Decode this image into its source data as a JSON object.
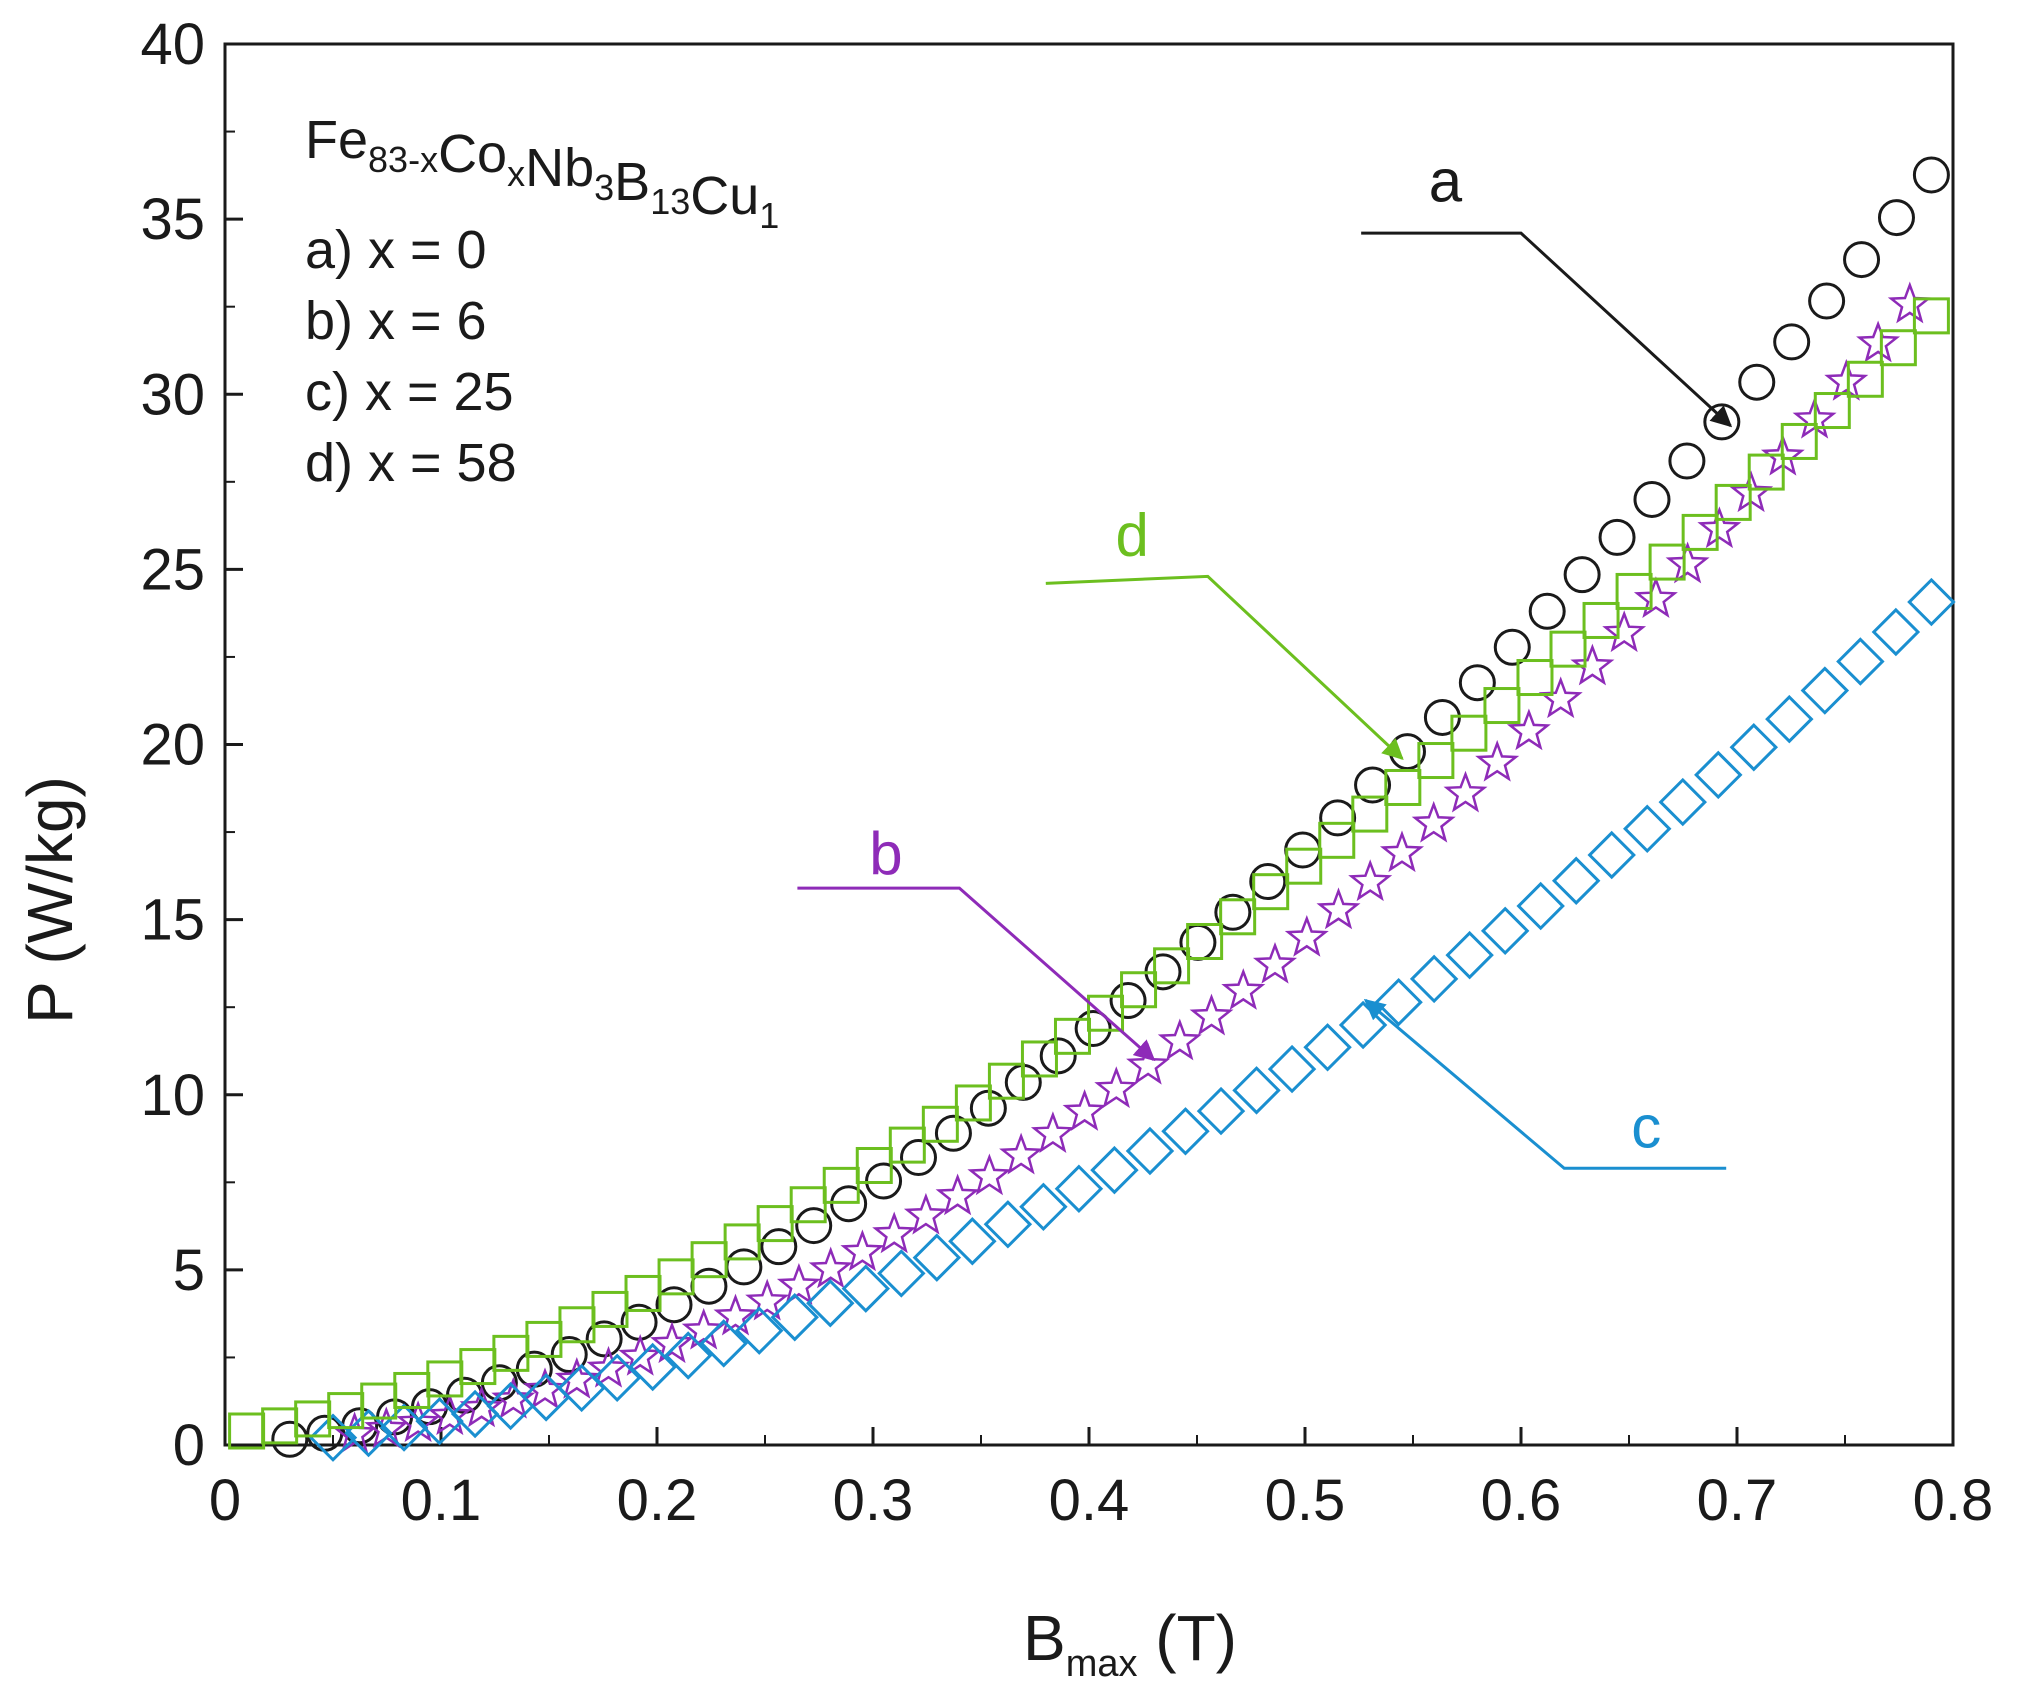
{
  "chart_data": {
    "type": "scatter",
    "title": "",
    "xlabel": {
      "main": "B",
      "sub": "max",
      "unit": "(T)"
    },
    "ylabel": "P (W/kg)",
    "xlim": [
      0,
      0.8
    ],
    "ylim": [
      0,
      40
    ],
    "xticks": [
      0,
      0.1,
      0.2,
      0.3,
      0.4,
      0.5,
      0.6,
      0.7,
      0.8
    ],
    "xtick_labels": [
      "0",
      "0.1",
      "0.2",
      "0.3",
      "0.4",
      "0.5",
      "0.6",
      "0.7",
      "0.8"
    ],
    "yticks": [
      0,
      5,
      10,
      15,
      20,
      25,
      30,
      35,
      40
    ],
    "ytick_labels": [
      "0",
      "5",
      "10",
      "15",
      "20",
      "25",
      "30",
      "35",
      "40"
    ],
    "grid": false,
    "legend_position": "top-left",
    "composition": {
      "parts": [
        {
          "text": "Fe",
          "sub": "83-x"
        },
        {
          "text": "Co",
          "sub": "x"
        },
        {
          "text": "Nb",
          "sub": "3"
        },
        {
          "text": "B",
          "sub": "13"
        },
        {
          "text": "Cu",
          "sub": "1"
        }
      ]
    },
    "legend_items": [
      "a) x = 0",
      "b) x = 6",
      "c) x = 25",
      "d) x = 58"
    ],
    "series": [
      {
        "id": "a",
        "name": "a) x = 0",
        "marker": "circle",
        "color": "#1a1a1a",
        "b_start": 0.03,
        "b_end": 0.79,
        "count": 48,
        "exponent": 1.65,
        "scale": 53.5
      },
      {
        "id": "b",
        "name": "b) x = 6",
        "marker": "star",
        "color": "#8e2bb8",
        "b_start": 0.06,
        "b_end": 0.78,
        "count": 50,
        "exponent": 1.83,
        "scale": 51.3
      },
      {
        "id": "c",
        "name": "c) x = 25",
        "marker": "diamond",
        "color": "#1a8fd0",
        "b_start": 0.05,
        "b_end": 0.79,
        "count": 46,
        "exponent": 1.72,
        "scale": 36.1
      },
      {
        "id": "d",
        "name": "d) x = 58",
        "marker": "square",
        "color": "#6cbf1f",
        "b_start": 0.01,
        "b_end": 0.79,
        "count": 52,
        "exponent": 1.48,
        "scale": 45.2,
        "offset": 0.35
      }
    ],
    "annotations": [
      {
        "series": "a",
        "label": "a",
        "color": "#1a1a1a",
        "text_at": [
          0.565,
          35.5
        ],
        "line_from": [
          0.526,
          34.6
        ],
        "elbow": [
          0.6,
          34.6
        ],
        "arrow_to": [
          0.697,
          29.1
        ]
      },
      {
        "series": "d",
        "label": "d",
        "color": "#6cbf1f",
        "text_at": [
          0.42,
          25.4
        ],
        "line_from": [
          0.38,
          24.6
        ],
        "elbow": [
          0.455,
          24.8
        ],
        "arrow_to": [
          0.545,
          19.6
        ]
      },
      {
        "series": "b",
        "label": "b",
        "color": "#8e2bb8",
        "text_at": [
          0.306,
          16.3
        ],
        "line_from": [
          0.265,
          15.9
        ],
        "elbow": [
          0.34,
          15.9
        ],
        "arrow_to": [
          0.43,
          11.0
        ]
      },
      {
        "series": "c",
        "label": "c",
        "color": "#1a8fd0",
        "text_at": [
          0.658,
          8.5
        ],
        "line_from": [
          0.695,
          7.9
        ],
        "elbow": [
          0.62,
          7.9
        ],
        "arrow_to": [
          0.528,
          12.7
        ]
      }
    ]
  }
}
